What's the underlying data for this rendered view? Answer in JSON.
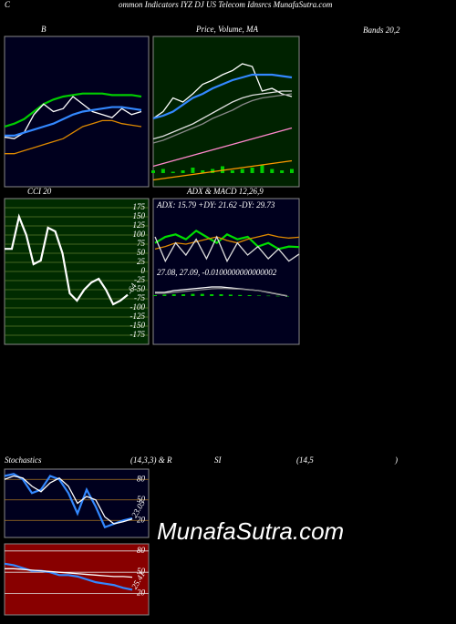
{
  "header": {
    "prefix": "C",
    "title": "ommon Indicators IYZ DJ US Telecom Idnsrcs MunafaSutra.com"
  },
  "bands_label": "Bands 20,2",
  "caption": [
    "(14,3,3) & R",
    "SI",
    "(14,5",
    ")"
  ],
  "watermark": "MunafaSutra.com",
  "chart_data": [
    {
      "type": "line",
      "title": "B",
      "ylim": [
        0,
        100
      ],
      "series": [
        {
          "color": "#00cc00",
          "values": [
            40,
            42,
            45,
            50,
            55,
            58,
            60,
            61,
            62,
            62,
            62,
            61,
            61,
            61,
            60
          ]
        },
        {
          "color": "#ffffff",
          "values": [
            33,
            32,
            36,
            48,
            55,
            50,
            52,
            60,
            55,
            50,
            48,
            46,
            52,
            48,
            50
          ]
        },
        {
          "color": "#3388ff",
          "values": [
            34,
            34,
            36,
            38,
            40,
            42,
            45,
            48,
            50,
            51,
            52,
            53,
            53,
            52,
            51
          ]
        },
        {
          "color": "#dd8800",
          "values": [
            22,
            22,
            24,
            26,
            28,
            30,
            32,
            36,
            40,
            42,
            44,
            44,
            42,
            41,
            40
          ]
        }
      ]
    },
    {
      "type": "line",
      "title": "Price, Volume, MA",
      "ylim": [
        -10,
        100
      ],
      "series": [
        {
          "type": "bar",
          "color": "#00cc00",
          "values": [
            2,
            3,
            1,
            2,
            4,
            2,
            3,
            5,
            2,
            3,
            4,
            6,
            3,
            2,
            3
          ]
        },
        {
          "color": "#ffffff",
          "values": [
            40,
            45,
            55,
            52,
            58,
            65,
            68,
            72,
            75,
            80,
            78,
            60,
            62,
            58,
            56
          ]
        },
        {
          "color": "#3388ff",
          "values": [
            40,
            42,
            45,
            50,
            55,
            58,
            62,
            65,
            68,
            70,
            72,
            72,
            72,
            71,
            70
          ]
        },
        {
          "color": "#dddddd",
          "values": [
            25,
            27,
            30,
            33,
            36,
            40,
            44,
            48,
            52,
            55,
            57,
            58,
            59,
            60,
            60
          ]
        },
        {
          "color": "#888888",
          "values": [
            22,
            24,
            27,
            30,
            33,
            36,
            40,
            43,
            46,
            50,
            53,
            55,
            56,
            57,
            58
          ]
        },
        {
          "color": "#ff88cc",
          "values": [
            5,
            7,
            9,
            11,
            13,
            15,
            17,
            19,
            21,
            23,
            25,
            27,
            29,
            31,
            33
          ]
        },
        {
          "color": "#ff9900",
          "values": [
            -5,
            -4,
            -3,
            -2,
            -1,
            0,
            1,
            2,
            3,
            4,
            5,
            6,
            7,
            8,
            9
          ]
        }
      ]
    },
    {
      "type": "line",
      "title": "CCI 20",
      "ylim": [
        -200,
        200
      ],
      "yticks": [
        175,
        150,
        125,
        100,
        75,
        50,
        25,
        0,
        -25,
        -50,
        -75,
        -100,
        -125,
        -150,
        -175
      ],
      "series": [
        {
          "color": "#ffffff",
          "values": [
            62,
            62,
            150,
            100,
            20,
            30,
            120,
            110,
            50,
            -60,
            -80,
            -50,
            -30,
            -20,
            -50,
            -90,
            -80,
            -64
          ]
        }
      ]
    },
    {
      "type": "line",
      "title": "ADX & MACD 12,26,9",
      "text": "ADX: 15.79 +DY: 21.62 -DY: 29.73",
      "ylim": [
        0,
        45
      ],
      "series": [
        {
          "color": "#00dd00",
          "values": [
            25,
            30,
            32,
            28,
            35,
            30,
            25,
            32,
            28,
            30,
            22,
            25,
            20,
            22,
            21.62
          ]
        },
        {
          "color": "#dd8800",
          "values": [
            20,
            22,
            25,
            24,
            26,
            28,
            30,
            27,
            25,
            28,
            30,
            32,
            30,
            29,
            29.73
          ]
        },
        {
          "color": "#dddddd",
          "values": [
            30,
            10,
            25,
            15,
            28,
            12,
            30,
            10,
            25,
            15,
            22,
            12,
            20,
            10,
            15.79
          ]
        }
      ]
    },
    {
      "type": "line",
      "text": "27.08, 27.09, -0.0100000000000002",
      "ylim": [
        -1,
        1
      ],
      "series": [
        {
          "type": "bar",
          "color": "#00cc00",
          "values": [
            0.05,
            0.08,
            0.1,
            0.1,
            0.12,
            0.12,
            0.1,
            0.1,
            0.08,
            0.06,
            0.05,
            0.03,
            0.02,
            0.01,
            -0.01
          ]
        },
        {
          "color": "#ffffff",
          "values": [
            0.2,
            0.2,
            0.3,
            0.35,
            0.4,
            0.45,
            0.5,
            0.5,
            0.45,
            0.4,
            0.35,
            0.3,
            0.2,
            0.1,
            0
          ]
        },
        {
          "color": "#888888",
          "values": [
            0.15,
            0.15,
            0.2,
            0.25,
            0.3,
            0.35,
            0.4,
            0.42,
            0.4,
            0.38,
            0.34,
            0.3,
            0.22,
            0.12,
            0.02
          ]
        }
      ]
    },
    {
      "type": "line",
      "title": "Stochastics",
      "ylim": [
        -5,
        95
      ],
      "yticks": [
        80,
        50,
        20
      ],
      "series": [
        {
          "color": "#3388ff",
          "values": [
            85,
            88,
            80,
            60,
            65,
            85,
            80,
            60,
            30,
            65,
            40,
            10,
            15,
            20,
            23.05
          ]
        },
        {
          "color": "#ffffff",
          "values": [
            80,
            85,
            82,
            70,
            62,
            75,
            82,
            70,
            45,
            55,
            50,
            25,
            15,
            18,
            22
          ]
        }
      ]
    },
    {
      "type": "line",
      "ylim": [
        -10,
        90
      ],
      "yticks": [
        80,
        50,
        20
      ],
      "series": [
        {
          "color": "#3388ff",
          "values": [
            62,
            60,
            56,
            52,
            52,
            50,
            46,
            46,
            44,
            40,
            36,
            34,
            32,
            28,
            25.41
          ]
        },
        {
          "color": "#ffffff",
          "values": [
            55,
            55,
            54,
            53,
            52,
            51,
            50,
            49,
            48,
            47,
            46,
            45,
            44,
            44,
            43
          ]
        }
      ]
    }
  ]
}
